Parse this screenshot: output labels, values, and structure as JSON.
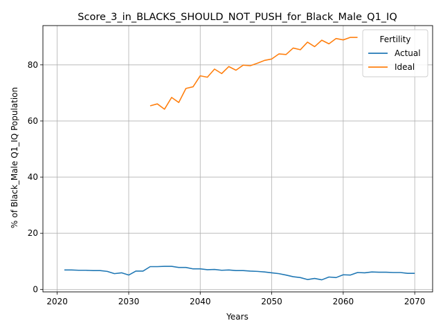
{
  "chart_data": {
    "type": "line",
    "title": "Score_3_in_BLACKS_SHOULD_NOT_PUSH_for_Black_Male_Q1_IQ",
    "xlabel": "Years",
    "ylabel": "% of Black_Male Q1_IQ Population",
    "xlim": [
      2018,
      2072.5
    ],
    "ylim": [
      -0.9,
      94
    ],
    "xticks": [
      2020,
      2030,
      2040,
      2050,
      2060,
      2070
    ],
    "yticks": [
      0,
      20,
      40,
      60,
      80
    ],
    "grid": true,
    "legend": {
      "title": "Fertility",
      "placement": "top-right"
    },
    "series": [
      {
        "name": "Actual",
        "color": "#1f77b4",
        "x": [
          2021,
          2022,
          2023,
          2024,
          2025,
          2026,
          2027,
          2028,
          2029,
          2030,
          2031,
          2032,
          2033,
          2034,
          2035,
          2036,
          2037,
          2038,
          2039,
          2040,
          2041,
          2042,
          2043,
          2044,
          2045,
          2046,
          2047,
          2048,
          2049,
          2050,
          2051,
          2052,
          2053,
          2054,
          2055,
          2056,
          2057,
          2058,
          2059,
          2060,
          2061,
          2062,
          2063,
          2064,
          2065,
          2066,
          2067,
          2068,
          2069,
          2070
        ],
        "values": [
          6.9,
          6.9,
          6.8,
          6.8,
          6.7,
          6.7,
          6.4,
          5.6,
          5.9,
          5.1,
          6.5,
          6.5,
          8.1,
          8.1,
          8.2,
          8.2,
          7.8,
          7.8,
          7.3,
          7.3,
          7.0,
          7.1,
          6.8,
          6.9,
          6.7,
          6.7,
          6.5,
          6.4,
          6.2,
          5.9,
          5.6,
          5.1,
          4.5,
          4.2,
          3.5,
          3.9,
          3.4,
          4.4,
          4.2,
          5.2,
          5.1,
          6.0,
          5.9,
          6.2,
          6.1,
          6.1,
          6.0,
          6.0,
          5.7,
          5.7
        ]
      },
      {
        "name": "Ideal",
        "color": "#ff7f0e",
        "x": [
          2033,
          2034,
          2035,
          2036,
          2037,
          2038,
          2039,
          2040,
          2041,
          2042,
          2043,
          2044,
          2045,
          2046,
          2047,
          2048,
          2049,
          2050,
          2051,
          2052,
          2053,
          2054,
          2055,
          2056,
          2057,
          2058,
          2059,
          2060,
          2061,
          2062
        ],
        "values": [
          65.4,
          66.1,
          64.2,
          68.4,
          66.6,
          71.6,
          72.2,
          76.1,
          75.6,
          78.5,
          76.9,
          79.4,
          78.1,
          79.9,
          79.7,
          80.6,
          81.6,
          82.1,
          83.9,
          83.7,
          86.0,
          85.4,
          88.1,
          86.5,
          88.8,
          87.5,
          89.4,
          88.9,
          89.8,
          89.8
        ]
      }
    ]
  }
}
